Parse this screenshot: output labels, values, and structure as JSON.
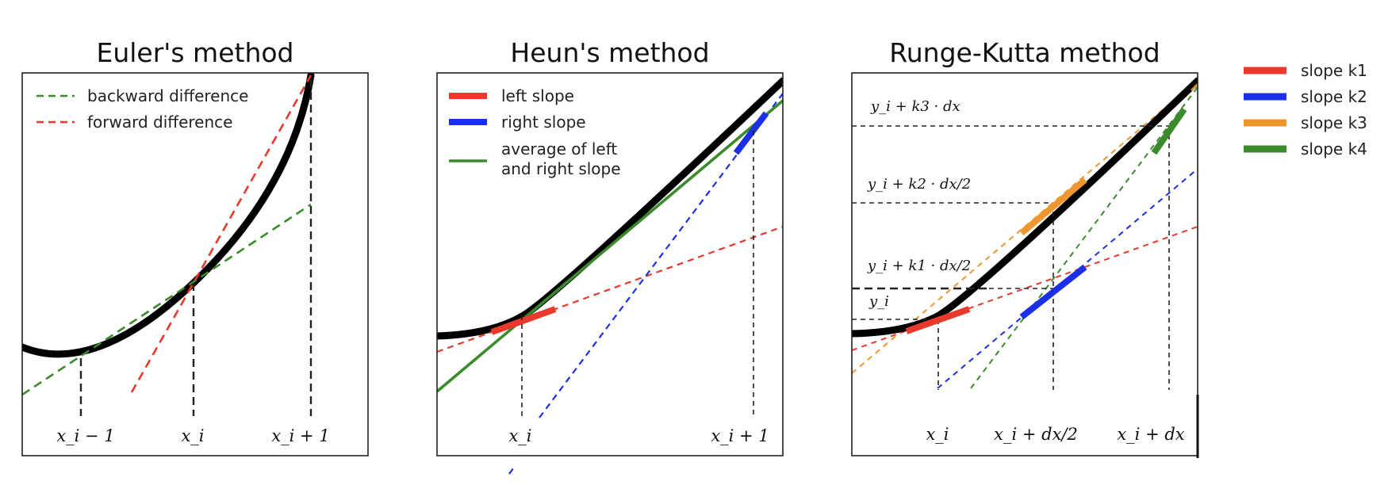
{
  "panels": {
    "euler": {
      "title": "Euler's method",
      "legend": [
        "backward difference",
        "forward difference"
      ],
      "xlabels": [
        "x_i − 1",
        "x_i",
        "x_i + 1"
      ]
    },
    "heun": {
      "title": "Heun's method",
      "legend": [
        "left slope",
        "right slope",
        "average of left",
        "and right slope"
      ],
      "xlabels": [
        "x_i",
        "x_i + 1"
      ]
    },
    "rk": {
      "title": "Runge-Kutta method",
      "ylabels": [
        "y_i + k3 · dx",
        "y_i + k2 · dx/2",
        "y_i + k1 · dx/2",
        "y_i"
      ],
      "xlabels": [
        "x_i",
        "x_i + dx/2",
        "x_i + dx"
      ]
    }
  },
  "side_legend": [
    "slope k1",
    "slope k2",
    "slope k3",
    "slope k4"
  ],
  "colors": {
    "curve": "#000000",
    "red": "#e8392c",
    "blue": "#1b2fe8",
    "green": "#3b8a2b",
    "orange": "#f0962e",
    "dashed_guides": "#222222"
  }
}
